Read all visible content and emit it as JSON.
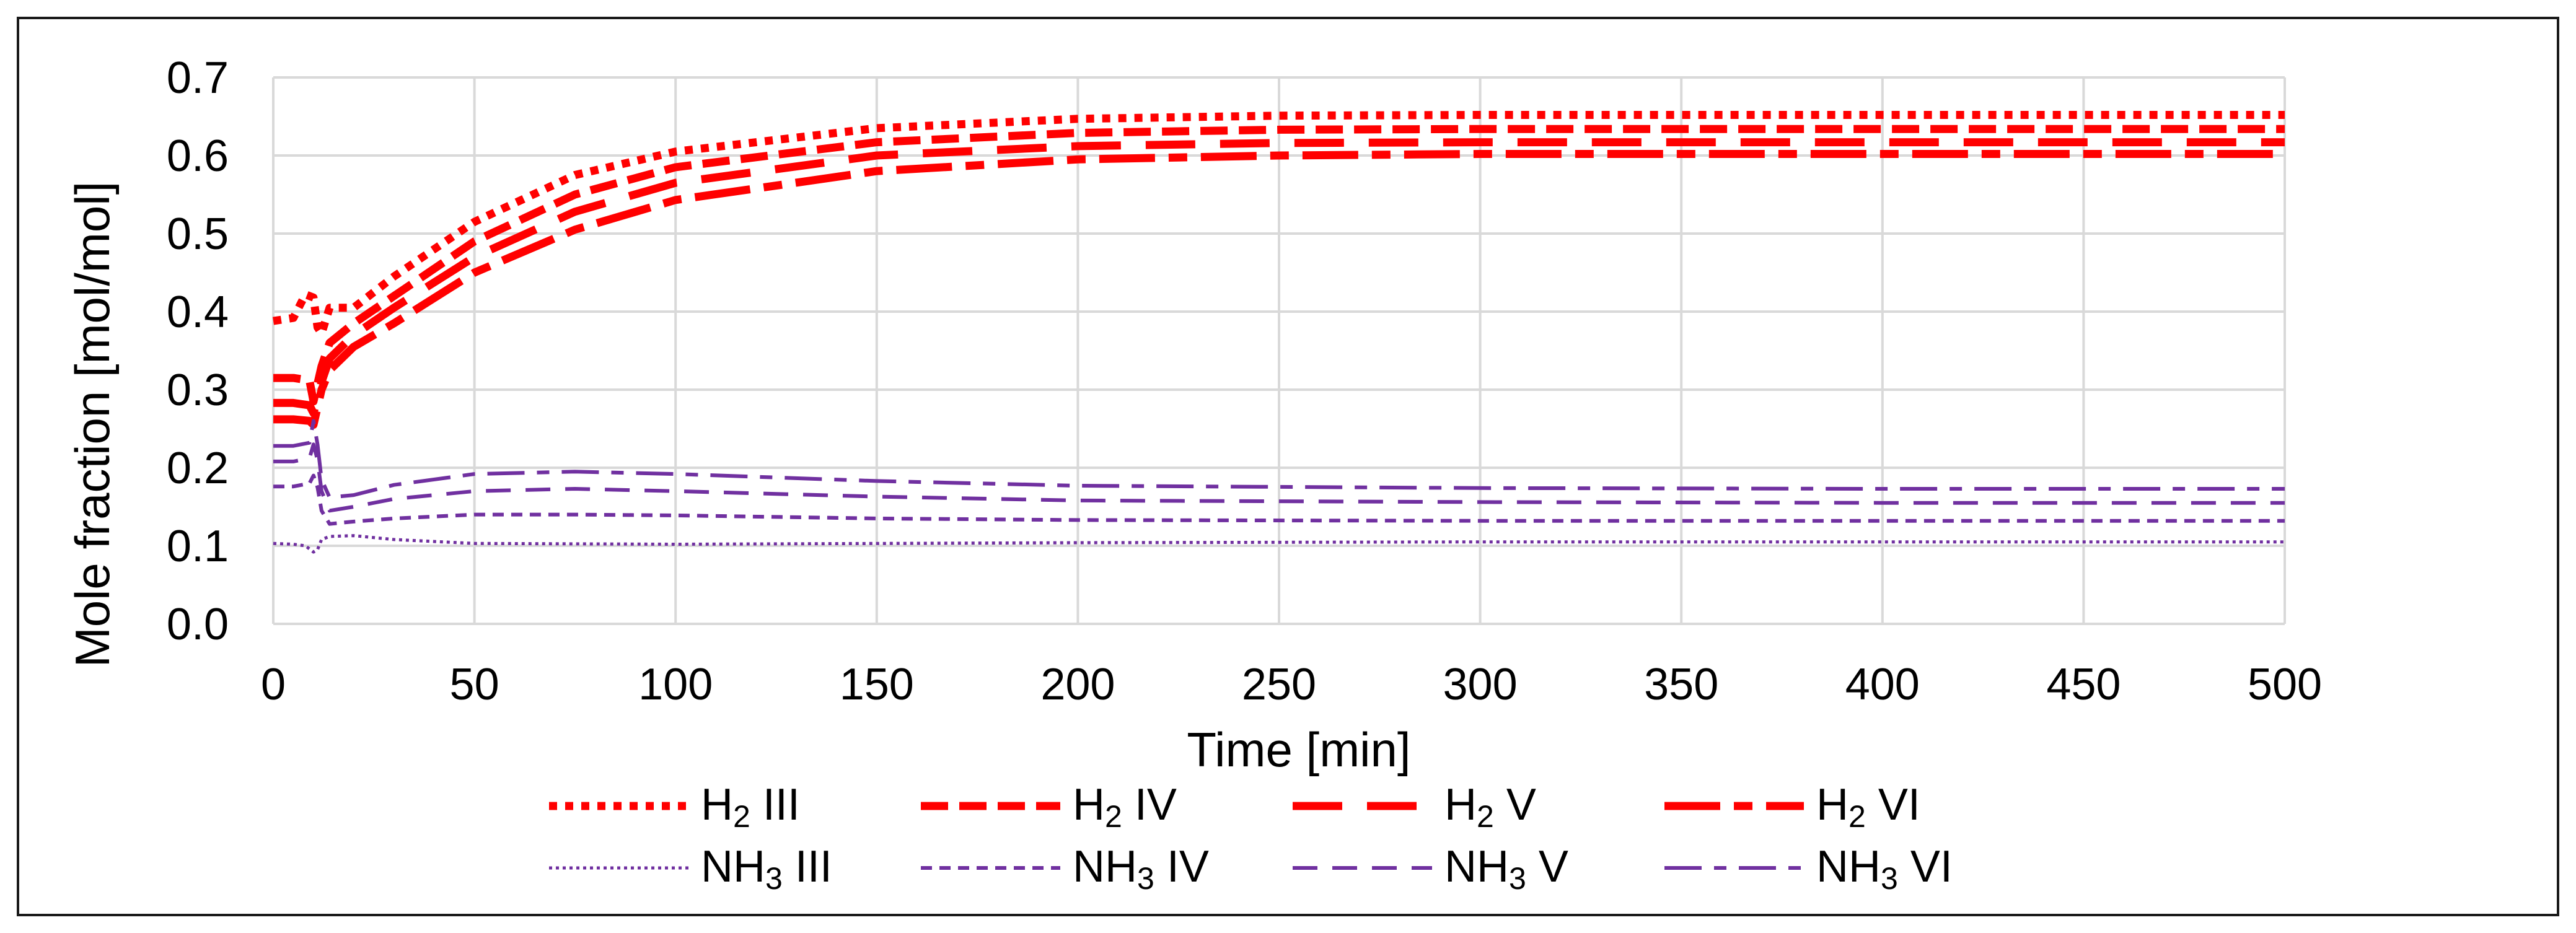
{
  "chart_data": {
    "type": "line",
    "title": "",
    "xlabel": "Time [min]",
    "ylabel": "Mole fraction [mol/mol]",
    "xlim": [
      0,
      500
    ],
    "ylim": [
      0,
      0.7
    ],
    "xticks": [
      0,
      50,
      100,
      150,
      200,
      250,
      300,
      350,
      400,
      450,
      500
    ],
    "yticks": [
      0.0,
      0.1,
      0.2,
      0.3,
      0.4,
      0.5,
      0.6,
      0.7
    ],
    "ytick_labels": [
      "0.0",
      "0.1",
      "0.2",
      "0.3",
      "0.4",
      "0.5",
      "0.6",
      "0.7"
    ],
    "grid": true,
    "legend_position": "bottom",
    "series": [
      {
        "name": "H2 III",
        "label_main": "H",
        "label_sub": "2",
        "label_rest": " III",
        "color": "#ff0000",
        "style": "dotted",
        "weight": "heavy",
        "x": [
          0,
          5,
          8,
          10,
          11,
          12,
          14,
          20,
          30,
          50,
          75,
          100,
          150,
          200,
          250,
          300,
          400,
          500
        ],
        "y": [
          0.388,
          0.392,
          0.422,
          0.418,
          0.38,
          0.372,
          0.405,
          0.405,
          0.445,
          0.515,
          0.575,
          0.605,
          0.635,
          0.647,
          0.651,
          0.652,
          0.652,
          0.652
        ]
      },
      {
        "name": "H2 IV",
        "label_main": "H",
        "label_sub": "2",
        "label_rest": " IV",
        "color": "#ff0000",
        "style": "dashed",
        "weight": "heavy",
        "x": [
          0,
          5,
          9,
          10,
          12,
          14,
          20,
          30,
          50,
          75,
          100,
          150,
          200,
          250,
          300,
          400,
          500
        ],
        "y": [
          0.315,
          0.315,
          0.312,
          0.285,
          0.33,
          0.36,
          0.385,
          0.42,
          0.49,
          0.55,
          0.585,
          0.617,
          0.629,
          0.633,
          0.634,
          0.634,
          0.634
        ]
      },
      {
        "name": "H2 V",
        "label_main": "H",
        "label_sub": "2",
        "label_rest": " V",
        "color": "#ff0000",
        "style": "longdash",
        "weight": "heavy",
        "x": [
          0,
          5,
          9,
          10,
          12,
          14,
          20,
          30,
          50,
          75,
          100,
          150,
          200,
          250,
          300,
          400,
          500
        ],
        "y": [
          0.283,
          0.283,
          0.28,
          0.27,
          0.31,
          0.34,
          0.37,
          0.405,
          0.47,
          0.528,
          0.565,
          0.6,
          0.612,
          0.616,
          0.617,
          0.617,
          0.617
        ]
      },
      {
        "name": "H2 VI",
        "label_main": "H",
        "label_sub": "2",
        "label_rest": " VI",
        "color": "#ff0000",
        "style": "longdashgap",
        "weight": "heavy",
        "x": [
          0,
          5,
          9,
          10,
          12,
          14,
          20,
          30,
          50,
          75,
          100,
          150,
          200,
          250,
          300,
          400,
          500
        ],
        "y": [
          0.262,
          0.262,
          0.26,
          0.255,
          0.3,
          0.325,
          0.355,
          0.385,
          0.45,
          0.505,
          0.543,
          0.58,
          0.595,
          0.6,
          0.602,
          0.602,
          0.602
        ]
      },
      {
        "name": "NH3 III",
        "label_main": "NH",
        "label_sub": "3",
        "label_rest": " III",
        "color": "#7030a0",
        "style": "dotted",
        "weight": "light",
        "x": [
          0,
          5,
          8,
          10,
          11,
          12,
          14,
          20,
          30,
          50,
          100,
          200,
          300,
          400,
          500
        ],
        "y": [
          0.103,
          0.102,
          0.1,
          0.092,
          0.095,
          0.108,
          0.112,
          0.113,
          0.108,
          0.103,
          0.102,
          0.104,
          0.105,
          0.105,
          0.105
        ]
      },
      {
        "name": "NH3 IV",
        "label_main": "NH",
        "label_sub": "3",
        "label_rest": " IV",
        "color": "#7030a0",
        "style": "dashed",
        "weight": "light",
        "x": [
          0,
          5,
          9,
          10,
          11,
          12,
          14,
          20,
          30,
          50,
          75,
          100,
          150,
          200,
          300,
          400,
          500
        ],
        "y": [
          0.176,
          0.176,
          0.18,
          0.19,
          0.175,
          0.145,
          0.128,
          0.131,
          0.135,
          0.14,
          0.14,
          0.139,
          0.135,
          0.133,
          0.132,
          0.132,
          0.132
        ]
      },
      {
        "name": "NH3 V",
        "label_main": "NH",
        "label_sub": "3",
        "label_rest": " V",
        "color": "#7030a0",
        "style": "longdash",
        "weight": "light",
        "x": [
          0,
          5,
          9,
          10,
          11,
          12,
          14,
          20,
          30,
          50,
          75,
          100,
          150,
          200,
          300,
          400,
          500
        ],
        "y": [
          0.208,
          0.208,
          0.212,
          0.23,
          0.21,
          0.17,
          0.145,
          0.15,
          0.16,
          0.17,
          0.173,
          0.17,
          0.163,
          0.158,
          0.156,
          0.155,
          0.155
        ]
      },
      {
        "name": "NH3 VI",
        "label_main": "NH",
        "label_sub": "3",
        "label_rest": " VI",
        "color": "#7030a0",
        "style": "longdashgap",
        "weight": "light",
        "x": [
          0,
          5,
          9,
          10,
          11,
          12,
          14,
          20,
          30,
          50,
          75,
          100,
          150,
          200,
          300,
          400,
          500
        ],
        "y": [
          0.228,
          0.228,
          0.232,
          0.26,
          0.23,
          0.185,
          0.162,
          0.165,
          0.178,
          0.192,
          0.195,
          0.192,
          0.183,
          0.177,
          0.174,
          0.173,
          0.173
        ]
      }
    ]
  }
}
